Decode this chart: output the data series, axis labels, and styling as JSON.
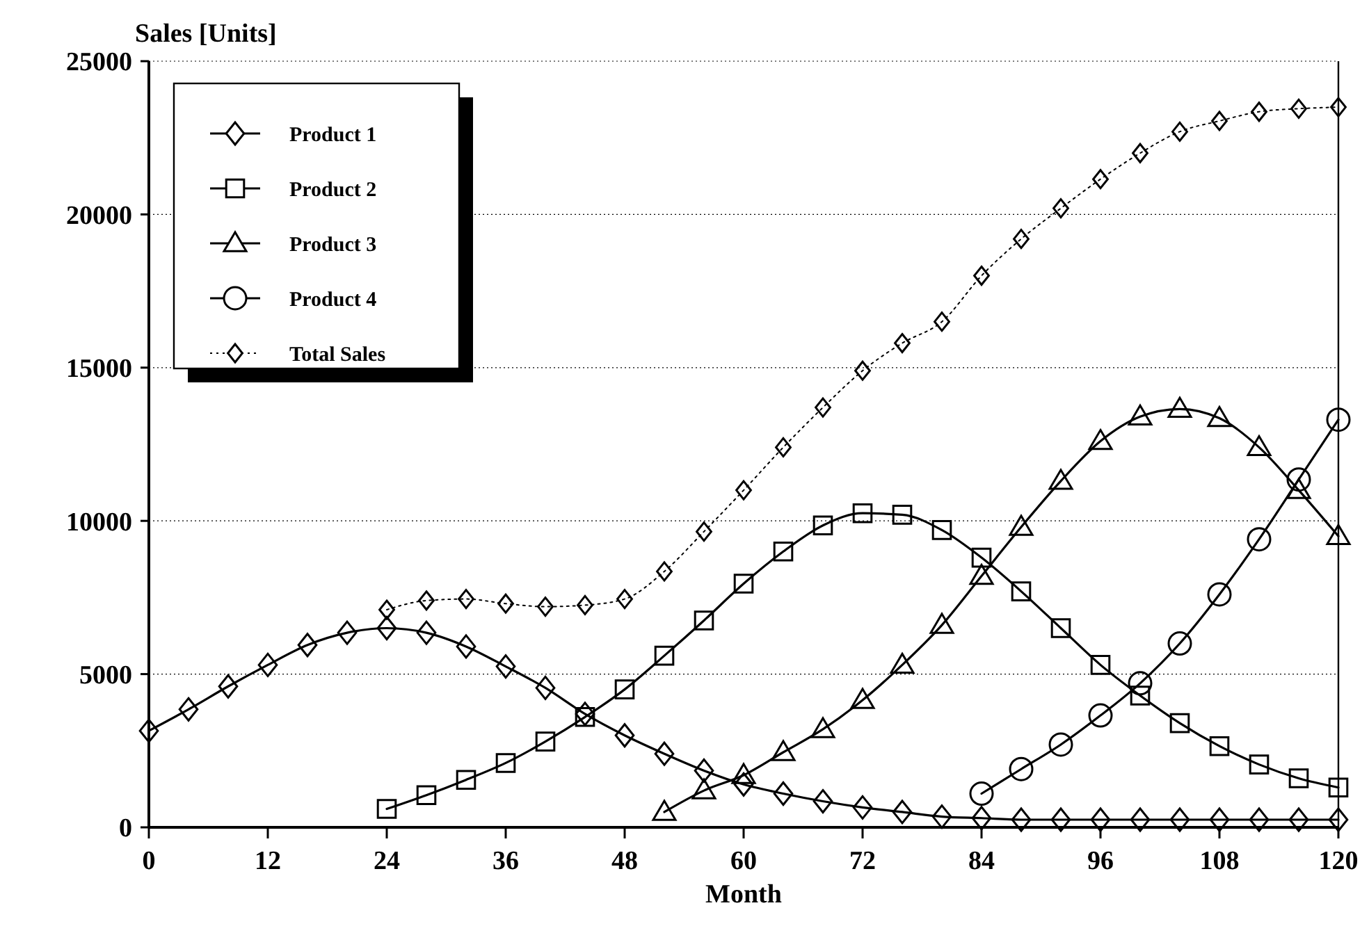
{
  "chart_data": {
    "type": "line",
    "xlabel": "Month",
    "ylabel": "Sales [Units]",
    "xlim": [
      0,
      120
    ],
    "xticks": [
      0,
      12,
      24,
      36,
      48,
      60,
      72,
      84,
      96,
      108,
      120
    ],
    "ylim": [
      0,
      25000
    ],
    "yticks": [
      0,
      5000,
      10000,
      15000,
      20000,
      25000
    ],
    "grid": "y",
    "legend": "top left",
    "series": [
      {
        "name": "Product 1",
        "color": "#000000",
        "marker": "diamond",
        "line_style": "solid",
        "x": [
          0,
          4,
          8,
          12,
          16,
          20,
          24,
          28,
          32,
          36,
          40,
          44,
          48,
          52,
          56,
          60,
          64,
          68,
          72,
          76,
          80,
          84,
          88,
          92,
          96,
          100,
          104,
          108,
          112,
          116,
          120
        ],
        "values": [
          3150,
          3850,
          4600,
          5300,
          5950,
          6350,
          6500,
          6350,
          5900,
          5250,
          4550,
          3700,
          3000,
          2400,
          1850,
          1400,
          1100,
          850,
          650,
          500,
          350,
          300,
          250,
          250,
          250,
          250,
          250,
          250,
          250,
          250,
          250
        ]
      },
      {
        "name": "Product 2",
        "color": "#000000",
        "marker": "square",
        "line_style": "solid",
        "x": [
          24,
          28,
          32,
          36,
          40,
          44,
          48,
          52,
          56,
          60,
          64,
          68,
          72,
          76,
          80,
          84,
          88,
          92,
          96,
          100,
          104,
          108,
          112,
          116,
          120
        ],
        "values": [
          600,
          1050,
          1550,
          2100,
          2800,
          3600,
          4500,
          5600,
          6750,
          7950,
          9000,
          9850,
          10250,
          10200,
          9700,
          8800,
          7700,
          6500,
          5300,
          4300,
          3400,
          2650,
          2050,
          1600,
          1300
        ]
      },
      {
        "name": "Product 3",
        "color": "#000000",
        "marker": "triangle",
        "line_style": "solid",
        "x": [
          52,
          56,
          60,
          64,
          68,
          72,
          76,
          80,
          84,
          88,
          92,
          96,
          100,
          104,
          108,
          112,
          116,
          120
        ],
        "values": [
          500,
          1200,
          1700,
          2450,
          3200,
          4150,
          5300,
          6600,
          8200,
          9800,
          11300,
          12600,
          13400,
          13650,
          13350,
          12400,
          11000,
          9500
        ]
      },
      {
        "name": "Product 4",
        "color": "#000000",
        "marker": "circle",
        "line_style": "solid",
        "x": [
          84,
          88,
          92,
          96,
          100,
          104,
          108,
          112,
          116,
          120
        ],
        "values": [
          1100,
          1900,
          2700,
          3650,
          4700,
          6000,
          7600,
          9400,
          11350,
          13300
        ]
      },
      {
        "name": "Total Sales",
        "color": "#000000",
        "marker": "diamond",
        "line_style": "dotted",
        "x": [
          24,
          28,
          32,
          36,
          40,
          44,
          48,
          52,
          56,
          60,
          64,
          68,
          72,
          76,
          80,
          84,
          88,
          92,
          96,
          100,
          104,
          108,
          112,
          116,
          120
        ],
        "values": [
          7100,
          7400,
          7450,
          7300,
          7200,
          7250,
          7450,
          8350,
          9650,
          11000,
          12400,
          13700,
          14900,
          15800,
          16500,
          18000,
          19200,
          20200,
          21150,
          22000,
          22700,
          23050,
          23350,
          23450,
          23500
        ]
      }
    ]
  }
}
